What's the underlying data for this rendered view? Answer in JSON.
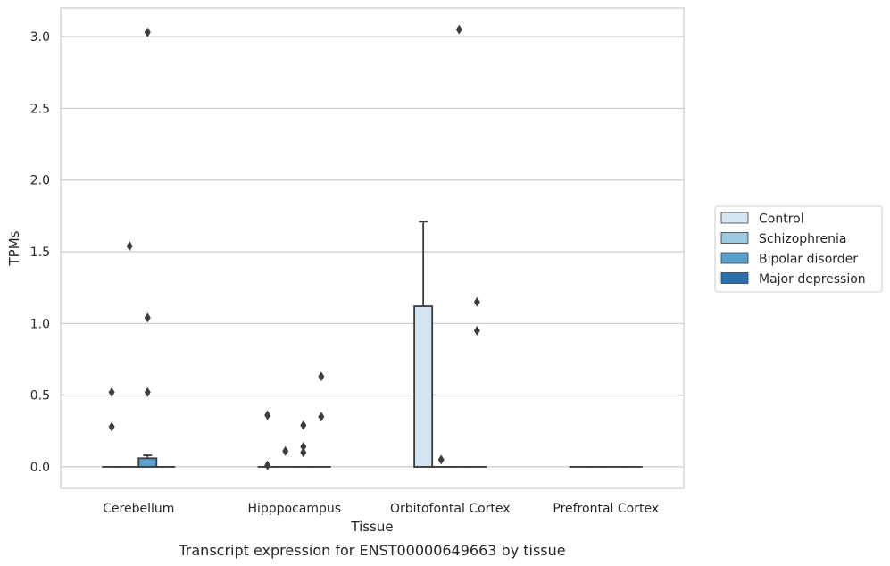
{
  "chart_data": {
    "type": "box",
    "title": "",
    "caption": "Transcript expression for ENST00000649663 by tissue",
    "xlabel": "Tissue",
    "ylabel": "TPMs",
    "ylim": [
      -0.15,
      3.2
    ],
    "yticks": [
      0.0,
      0.5,
      1.0,
      1.5,
      2.0,
      2.5,
      3.0
    ],
    "ytick_labels": [
      "0.0",
      "0.5",
      "1.0",
      "1.5",
      "2.0",
      "2.5",
      "3.0"
    ],
    "grid": "horizontal",
    "legend_position": "right",
    "categories": [
      "Cerebellum",
      "Hipppocampus",
      "Orbitofontal Cortex",
      "Prefrontal Cortex"
    ],
    "series": [
      {
        "name": "Control",
        "color": "#d3e4f3",
        "boxes": [
          {
            "category": "Cerebellum",
            "q1": 0,
            "median": 0,
            "q3": 0,
            "whisker_low": 0,
            "whisker_high": 0,
            "outliers": [
              0.28,
              0.52
            ]
          },
          {
            "category": "Hipppocampus",
            "q1": 0,
            "median": 0,
            "q3": 0,
            "whisker_low": 0,
            "whisker_high": 0,
            "outliers": [
              0.01,
              0.36
            ]
          },
          {
            "category": "Orbitofontal Cortex",
            "q1": 0,
            "median": 0,
            "q3": 1.12,
            "whisker_low": 0,
            "whisker_high": 1.71,
            "outliers": []
          },
          {
            "category": "Prefrontal Cortex",
            "q1": 0,
            "median": 0,
            "q3": 0,
            "whisker_low": 0,
            "whisker_high": 0,
            "outliers": []
          }
        ]
      },
      {
        "name": "Schizophrenia",
        "color": "#9ac8e0",
        "boxes": [
          {
            "category": "Cerebellum",
            "q1": 0,
            "median": 0,
            "q3": 0,
            "whisker_low": 0,
            "whisker_high": 0,
            "outliers": [
              1.54
            ]
          },
          {
            "category": "Hipppocampus",
            "q1": 0,
            "median": 0,
            "q3": 0,
            "whisker_low": 0,
            "whisker_high": 0,
            "outliers": [
              0.11
            ]
          },
          {
            "category": "Orbitofontal Cortex",
            "q1": 0,
            "median": 0,
            "q3": 0,
            "whisker_low": 0,
            "whisker_high": 0,
            "outliers": [
              0.05
            ]
          },
          {
            "category": "Prefrontal Cortex",
            "q1": 0,
            "median": 0,
            "q3": 0,
            "whisker_low": 0,
            "whisker_high": 0,
            "outliers": []
          }
        ]
      },
      {
        "name": "Bipolar disorder",
        "color": "#5a9ec9",
        "boxes": [
          {
            "category": "Cerebellum",
            "q1": 0,
            "median": 0,
            "q3": 0.06,
            "whisker_low": 0,
            "whisker_high": 0.08,
            "outliers": [
              0.52,
              1.04,
              3.03
            ]
          },
          {
            "category": "Hipppocampus",
            "q1": 0,
            "median": 0,
            "q3": 0,
            "whisker_low": 0,
            "whisker_high": 0,
            "outliers": [
              0.1,
              0.14,
              0.29
            ]
          },
          {
            "category": "Orbitofontal Cortex",
            "q1": 0,
            "median": 0,
            "q3": 0,
            "whisker_low": 0,
            "whisker_high": 0,
            "outliers": [
              3.05
            ]
          },
          {
            "category": "Prefrontal Cortex",
            "q1": 0,
            "median": 0,
            "q3": 0,
            "whisker_low": 0,
            "whisker_high": 0,
            "outliers": []
          }
        ]
      },
      {
        "name": "Major depression",
        "color": "#2c6fad",
        "boxes": [
          {
            "category": "Cerebellum",
            "q1": 0,
            "median": 0,
            "q3": 0,
            "whisker_low": 0,
            "whisker_high": 0,
            "outliers": []
          },
          {
            "category": "Hipppocampus",
            "q1": 0,
            "median": 0,
            "q3": 0,
            "whisker_low": 0,
            "whisker_high": 0,
            "outliers": [
              0.35,
              0.63
            ]
          },
          {
            "category": "Orbitofontal Cortex",
            "q1": 0,
            "median": 0,
            "q3": 0,
            "whisker_low": 0,
            "whisker_high": 0,
            "outliers": [
              0.95,
              1.15
            ]
          },
          {
            "category": "Prefrontal Cortex",
            "q1": 0,
            "median": 0,
            "q3": 0,
            "whisker_low": 0,
            "whisker_high": 0,
            "outliers": []
          }
        ]
      }
    ]
  }
}
